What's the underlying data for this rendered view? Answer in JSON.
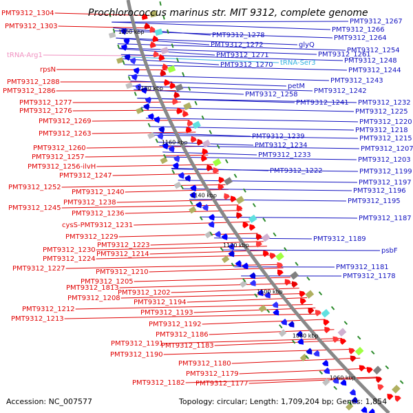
{
  "title": "Prochlorococcus marinus str. MIT 9312, complete genome",
  "accession": "Accession: NC_007577",
  "topology": "Topology: circular; Length: 1,709,204 bp; Genes: 1,854",
  "colors": {
    "reverse_label": "#e00000",
    "forward_label": "#1010c0",
    "trna_reverse": "#f090c0",
    "trna_forward": "#30b0e0",
    "backbone": "#888888",
    "tick": "#2a8a2a"
  },
  "scale_labels": [
    "1200 kbp",
    "1180 kbp",
    "1160 kbp",
    "1140 kbp",
    "1120 kbp",
    "1100 kbp",
    "1080 kbp",
    "1060 kbp"
  ],
  "reverse_labels": [
    "PMT9312_1304",
    "PMT9312_1303",
    "tRNA-Arg1",
    "rpsN",
    "PMT9312_1288",
    "PMT9312_1286",
    "PMT9312_1277",
    "PMT9312_1276",
    "PMT9312_1269",
    "PMT9312_1263",
    "PMT9312_1260",
    "PMT9312_1257",
    "PMT9312_1256-ilvH",
    "PMT9312_1247",
    "PMT9312_1252",
    "PMT9312_1240",
    "PMT9312_1238",
    "PMT9312_1245",
    "PMT9312_1236",
    "cysS-PMT9312_1231",
    "PMT9312_1229",
    "PMT9312_1230",
    "PMT9312_1223",
    "PMT9312_1224",
    "PMT9312_1214",
    "PMT9312_1227",
    "PMT9312_1210",
    "PMT9312_1205",
    "PMT9312_1813",
    "PMT9312_1202",
    "PMT9312_1208",
    "PMT9312_1194",
    "PMT9312_1212",
    "PMT9312_1193",
    "PMT9312_1213",
    "PMT9312_1192",
    "PMT9312_1186",
    "PMT9312_1191",
    "PMT9312_1183",
    "PMT9312_1190",
    "PMT9312_1180",
    "PMT9312_1179",
    "PMT9312_1182",
    "PMT9312_1177"
  ],
  "forward_labels": [
    "PMT9312_1267",
    "PMT9312_1266",
    "PMT9312_1278",
    "PMT9312_1264",
    "PMT9312_1272",
    "glyQ",
    "PMT9312_1271",
    "PMT9312_1261",
    "PMT9312_1254",
    "tRNA-Ser3",
    "PMT9312_1270",
    "PMT9312_1248",
    "PMT9312_1244",
    "PMT9312_1243",
    "petM",
    "PMT9312_1242",
    "PMT9312_1258",
    "PMT9312_1241",
    "PMT9312_1232",
    "PMT9312_1225",
    "PMT9312_1220",
    "PMT9312_1218",
    "PMT9312_1239",
    "PMT9312_1215",
    "PMT9312_1234",
    "PMT9312_1233",
    "PMT9312_1207",
    "PMT9312_1203",
    "PMT9312_1222",
    "PMT9312_1199",
    "PMT9312_1197",
    "PMT9312_1196",
    "PMT9312_1195",
    "PMT9312_1187",
    "PMT9312_1189",
    "psbF",
    "PMT9312_1181",
    "PMT9312_1178"
  ]
}
